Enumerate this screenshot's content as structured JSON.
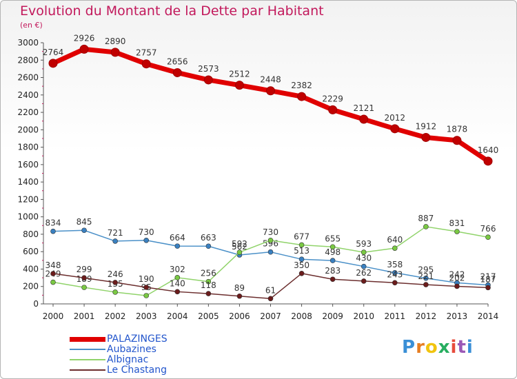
{
  "title": "Evolution du Montant de la Dette par Habitant",
  "unit": "(en €)",
  "logo": {
    "letters": [
      "P",
      "r",
      "o",
      "x",
      "i",
      "t",
      "i"
    ],
    "colors": [
      "#3a8fd6",
      "#e67e22",
      "#f1c40f",
      "#27ae60",
      "#e74c3c",
      "#9b59b6",
      "#3a8fd6"
    ]
  },
  "chart_data": {
    "type": "line",
    "x": [
      2000,
      2001,
      2002,
      2003,
      2004,
      2005,
      2006,
      2007,
      2008,
      2009,
      2010,
      2011,
      2012,
      2013,
      2014
    ],
    "ylim": [
      0,
      3000
    ],
    "yticks": [
      0,
      200,
      400,
      600,
      800,
      1000,
      1200,
      1400,
      1600,
      1800,
      2000,
      2200,
      2400,
      2600,
      2800,
      3000
    ],
    "grid": false,
    "legend_position": "bottom-left",
    "series": [
      {
        "name": "PALAZINGES",
        "color": "#e00000",
        "marker": "#c00000",
        "values": [
          2764,
          2926,
          2890,
          2757,
          2656,
          2573,
          2512,
          2448,
          2382,
          2229,
          2121,
          2012,
          1912,
          1878,
          1640
        ]
      },
      {
        "name": "Aubazines",
        "color": "#4a90c8",
        "marker": "#3a80c0",
        "values": [
          834,
          845,
          721,
          730,
          664,
          663,
          562,
          596,
          513,
          498,
          430,
          358,
          295,
          242,
          217
        ]
      },
      {
        "name": "Albignac",
        "color": "#90d36a",
        "marker": "#7ac943",
        "values": [
          249,
          189,
          135,
          95,
          302,
          256,
          592,
          730,
          677,
          655,
          593,
          640,
          887,
          831,
          766
        ]
      },
      {
        "name": "Le Chastang",
        "color": "#6b2d2d",
        "marker": "#6b1c1c",
        "values": [
          348,
          299,
          246,
          190,
          140,
          118,
          89,
          61,
          350,
          283,
          262,
          243,
          221,
          202,
          187
        ]
      }
    ]
  }
}
